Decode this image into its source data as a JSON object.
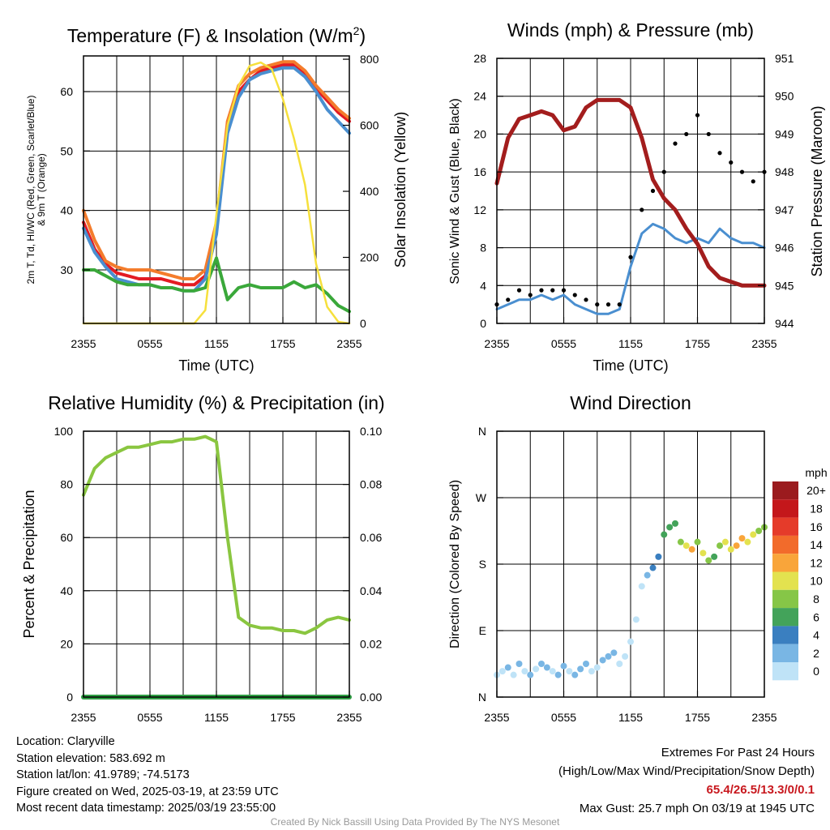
{
  "chart_data": [
    {
      "type": "line",
      "title": "Temperature (F) & Insolation (W/m²)",
      "title_main": "Temperature (F) & Insolation (W/m",
      "title_sup": "2",
      "xlabel": "Time (UTC)",
      "ylabel_left_line1": "2m T, Td, HI/WC (Red, Green, Scarlet/Blue)",
      "ylabel_left_line2": "& 9m T (Orange)",
      "ylabel_right": "Solar Insolation (Yellow)",
      "x_ticks": [
        "2355",
        "0555",
        "1155",
        "1755",
        "2355"
      ],
      "x_range_hours": [
        0,
        24
      ],
      "ylim_left": [
        21,
        66
      ],
      "y_ticks_left": [
        30,
        40,
        50,
        60
      ],
      "ylim_right": [
        0,
        810
      ],
      "y_ticks_right": [
        0,
        200,
        400,
        600,
        800
      ],
      "series": [
        {
          "color": "#e31b23",
          "axis": "left",
          "x": [
            0,
            1,
            2,
            3,
            4,
            5,
            6,
            7,
            8,
            9,
            10,
            11,
            12,
            13,
            14,
            15,
            16,
            17,
            18,
            19,
            20,
            21,
            22,
            23,
            24
          ],
          "values": [
            38,
            33.5,
            31,
            29.5,
            29,
            28.5,
            28.5,
            28.5,
            28,
            27.5,
            27.5,
            29,
            37,
            54,
            60,
            62,
            63.5,
            64,
            64.5,
            64.5,
            63,
            60.5,
            58.5,
            56.5,
            55
          ]
        },
        {
          "color": "#f47c2c",
          "axis": "left",
          "x": [
            0,
            1,
            2,
            3,
            4,
            5,
            6,
            7,
            8,
            9,
            10,
            11,
            12,
            13,
            14,
            15,
            16,
            17,
            18,
            19,
            20,
            21,
            22,
            23,
            24
          ],
          "values": [
            40,
            35,
            31.5,
            30.5,
            30,
            30,
            30,
            29.5,
            29,
            28.5,
            28.5,
            30,
            38,
            55,
            61,
            63,
            64,
            64.5,
            65,
            65,
            63.5,
            61,
            59,
            57,
            55.5
          ]
        },
        {
          "color": "#4a8fd0",
          "axis": "left",
          "x": [
            0,
            1,
            2,
            3,
            4,
            5,
            6,
            7,
            8,
            9,
            10,
            11,
            12,
            13,
            14,
            15,
            16,
            17,
            18,
            19,
            20,
            21,
            22,
            23,
            24
          ],
          "values": [
            37,
            33,
            30.5,
            28.5,
            28,
            27.5,
            27.5,
            27,
            27,
            26.5,
            26.5,
            28.5,
            36,
            53,
            59,
            62,
            63,
            63.5,
            64,
            64,
            62.5,
            60,
            57,
            55,
            53
          ]
        },
        {
          "color": "#3aa83a",
          "axis": "left",
          "x": [
            0,
            1,
            2,
            3,
            4,
            5,
            6,
            7,
            8,
            9,
            10,
            11,
            12,
            13,
            14,
            15,
            16,
            17,
            18,
            19,
            20,
            21,
            22,
            23,
            24
          ],
          "values": [
            30,
            30,
            29,
            28,
            27.5,
            27.5,
            27.5,
            27,
            27,
            26.5,
            26.5,
            27,
            32,
            25,
            27,
            27.5,
            27,
            27,
            27,
            28,
            27,
            27.5,
            26,
            24,
            23
          ]
        },
        {
          "color": "#f6e03c",
          "axis": "right",
          "x": [
            0,
            1,
            2,
            3,
            4,
            5,
            6,
            7,
            8,
            9,
            10,
            11,
            12,
            13,
            14,
            15,
            16,
            17,
            18,
            19,
            20,
            21,
            22,
            23,
            24
          ],
          "values": [
            0,
            0,
            0,
            0,
            0,
            0,
            0,
            0,
            0,
            0,
            0,
            40,
            330,
            600,
            720,
            780,
            790,
            770,
            680,
            560,
            420,
            180,
            50,
            5,
            0
          ]
        }
      ]
    },
    {
      "type": "line",
      "title": "Winds (mph) & Pressure (mb)",
      "xlabel": "Time (UTC)",
      "ylabel_left": "Sonic Wind & Gust (Blue, Black)",
      "ylabel_right": "Station Pressure (Maroon)",
      "x_ticks": [
        "2355",
        "0555",
        "1155",
        "1755",
        "2355"
      ],
      "x_range_hours": [
        0,
        24
      ],
      "ylim_left": [
        0,
        28
      ],
      "y_ticks_left": [
        0,
        4,
        8,
        12,
        16,
        20,
        24,
        28
      ],
      "ylim_right": [
        944,
        951
      ],
      "y_ticks_right": [
        944,
        945,
        946,
        947,
        948,
        949,
        950,
        951
      ],
      "series": [
        {
          "color": "#4a8fd0",
          "axis": "left",
          "x": [
            0,
            1,
            2,
            3,
            4,
            5,
            6,
            7,
            8,
            9,
            10,
            11,
            12,
            13,
            14,
            15,
            16,
            17,
            18,
            19,
            20,
            21,
            22,
            23,
            24
          ],
          "values": [
            1.5,
            2,
            2.5,
            2.5,
            3,
            2.5,
            3,
            2,
            1.5,
            1,
            1,
            1.5,
            6,
            9.5,
            10.5,
            10,
            9,
            8.5,
            9,
            8.5,
            10,
            9,
            8.5,
            8.5,
            8
          ]
        },
        {
          "color": "#000000",
          "axis": "left",
          "marker": "dot",
          "x": [
            0,
            1,
            2,
            3,
            4,
            5,
            6,
            7,
            8,
            9,
            10,
            11,
            12,
            13,
            14,
            15,
            16,
            17,
            18,
            19,
            20,
            21,
            22,
            23,
            24
          ],
          "values": [
            2,
            2.5,
            3.5,
            3,
            3.5,
            3.5,
            3.5,
            3,
            2.5,
            2,
            2,
            2,
            7,
            12,
            14,
            16,
            19,
            20,
            22,
            20,
            18,
            17,
            16,
            15,
            16
          ]
        },
        {
          "color": "#a31d1d",
          "axis": "right",
          "x": [
            0,
            1,
            2,
            3,
            4,
            5,
            6,
            7,
            8,
            9,
            10,
            11,
            12,
            13,
            14,
            15,
            16,
            17,
            18,
            19,
            20,
            21,
            22,
            23,
            24
          ],
          "values": [
            947.7,
            948.9,
            949.4,
            949.5,
            949.6,
            949.5,
            949.1,
            949.2,
            949.7,
            949.9,
            949.9,
            949.9,
            949.7,
            948.9,
            947.8,
            947.3,
            947.0,
            946.5,
            946.1,
            945.5,
            945.2,
            945.1,
            945.0,
            945.0,
            945.0
          ]
        }
      ]
    },
    {
      "type": "line",
      "title": "Relative Humidity (%) & Precipitation (in)",
      "xlabel": "",
      "ylabel_left": "Percent & Precipitation",
      "x_ticks": [
        "2355",
        "0555",
        "1155",
        "1755",
        "2355"
      ],
      "x_range_hours": [
        0,
        24
      ],
      "ylim_left": [
        0,
        100
      ],
      "y_ticks_left": [
        0,
        20,
        40,
        60,
        80,
        100
      ],
      "ylim_right": [
        0,
        0.1
      ],
      "y_ticks_right": [
        "0.00",
        "0.02",
        "0.04",
        "0.06",
        "0.08",
        "0.10"
      ],
      "series": [
        {
          "color": "#8ac640",
          "axis": "left",
          "x": [
            0,
            1,
            2,
            3,
            4,
            5,
            6,
            7,
            8,
            9,
            10,
            11,
            12,
            13,
            14,
            15,
            16,
            17,
            18,
            19,
            20,
            21,
            22,
            23,
            24
          ],
          "values": [
            76,
            86,
            90,
            92,
            94,
            94,
            95,
            96,
            96,
            97,
            97,
            98,
            96,
            60,
            30,
            27,
            26,
            26,
            25,
            25,
            24,
            26,
            29,
            30,
            29
          ]
        },
        {
          "color": "#2f9e44",
          "axis": "right",
          "x": [
            0,
            24
          ],
          "values": [
            0,
            0
          ]
        }
      ]
    },
    {
      "type": "scatter",
      "title": "Wind Direction",
      "xlabel": "",
      "ylabel_left": "Direction (Colored By Speed)",
      "x_ticks": [
        "2355",
        "0555",
        "1155",
        "1755",
        "2355"
      ],
      "x_range_hours": [
        0,
        24
      ],
      "ylim_degrees": [
        0,
        360
      ],
      "y_ticks_labels": [
        "N",
        "E",
        "S",
        "W",
        "N"
      ],
      "y_ticks_degrees": [
        0,
        90,
        180,
        270,
        360
      ],
      "x": [
        0,
        0.5,
        1,
        1.5,
        2,
        2.5,
        3,
        3.5,
        4,
        4.5,
        5,
        5.5,
        6,
        6.5,
        7,
        7.5,
        8,
        8.5,
        9,
        9.5,
        10,
        10.5,
        11,
        11.5,
        12,
        12.5,
        13,
        13.5,
        14,
        14.5,
        15,
        15.5,
        16,
        16.5,
        17,
        17.5,
        18,
        18.5,
        19,
        19.5,
        20,
        20.5,
        21,
        21.5,
        22,
        22.5,
        23,
        23.5,
        24
      ],
      "values": [
        30,
        35,
        40,
        30,
        45,
        35,
        30,
        38,
        45,
        40,
        35,
        30,
        42,
        35,
        30,
        38,
        45,
        35,
        40,
        50,
        55,
        60,
        45,
        55,
        75,
        105,
        150,
        165,
        175,
        190,
        220,
        230,
        235,
        210,
        205,
        200,
        210,
        195,
        185,
        190,
        205,
        210,
        200,
        205,
        215,
        210,
        220,
        225,
        230
      ],
      "speeds": [
        1,
        1,
        2,
        1,
        2,
        1,
        2,
        1,
        2,
        2,
        1,
        2,
        2,
        1,
        2,
        2,
        2,
        1,
        1,
        2,
        2,
        2,
        1,
        1,
        1,
        1,
        1,
        2,
        4,
        4,
        6,
        7,
        7,
        8,
        10,
        12,
        9,
        10,
        8,
        7,
        9,
        11,
        10,
        13,
        12,
        11,
        10,
        9,
        8
      ],
      "colorbar": {
        "label": "mph",
        "levels": [
          "20+",
          "18",
          "16",
          "14",
          "12",
          "10",
          "8",
          "6",
          "4",
          "2",
          "0"
        ],
        "colors": [
          "#9b1b1e",
          "#c4171b",
          "#e53b2a",
          "#f26b2b",
          "#f9a53a",
          "#e3e24f",
          "#86c647",
          "#43a35a",
          "#3a7fc0",
          "#79b6e4",
          "#bfe3f7"
        ]
      }
    }
  ],
  "station_info": {
    "location": "Location: Claryville",
    "elevation": "Station elevation: 583.692 m",
    "latlon": "Station lat/lon: 41.9789; -74.5173",
    "created": "Figure created on Wed, 2025-03-19, at 23:59 UTC",
    "recent": "Most recent data timestamp: 2025/03/19 23:55:00"
  },
  "extremes": {
    "title": "Extremes For Past 24 Hours",
    "subtitle": "(High/Low/Max Wind/Precipitation/Snow Depth)",
    "values": "65.4/26.5/13.3/0/0.1",
    "gust": "Max Gust: 25.7 mph On 03/19 at 1945 UTC"
  },
  "credit": "Created By Nick Bassill Using Data Provided By The NYS Mesonet"
}
